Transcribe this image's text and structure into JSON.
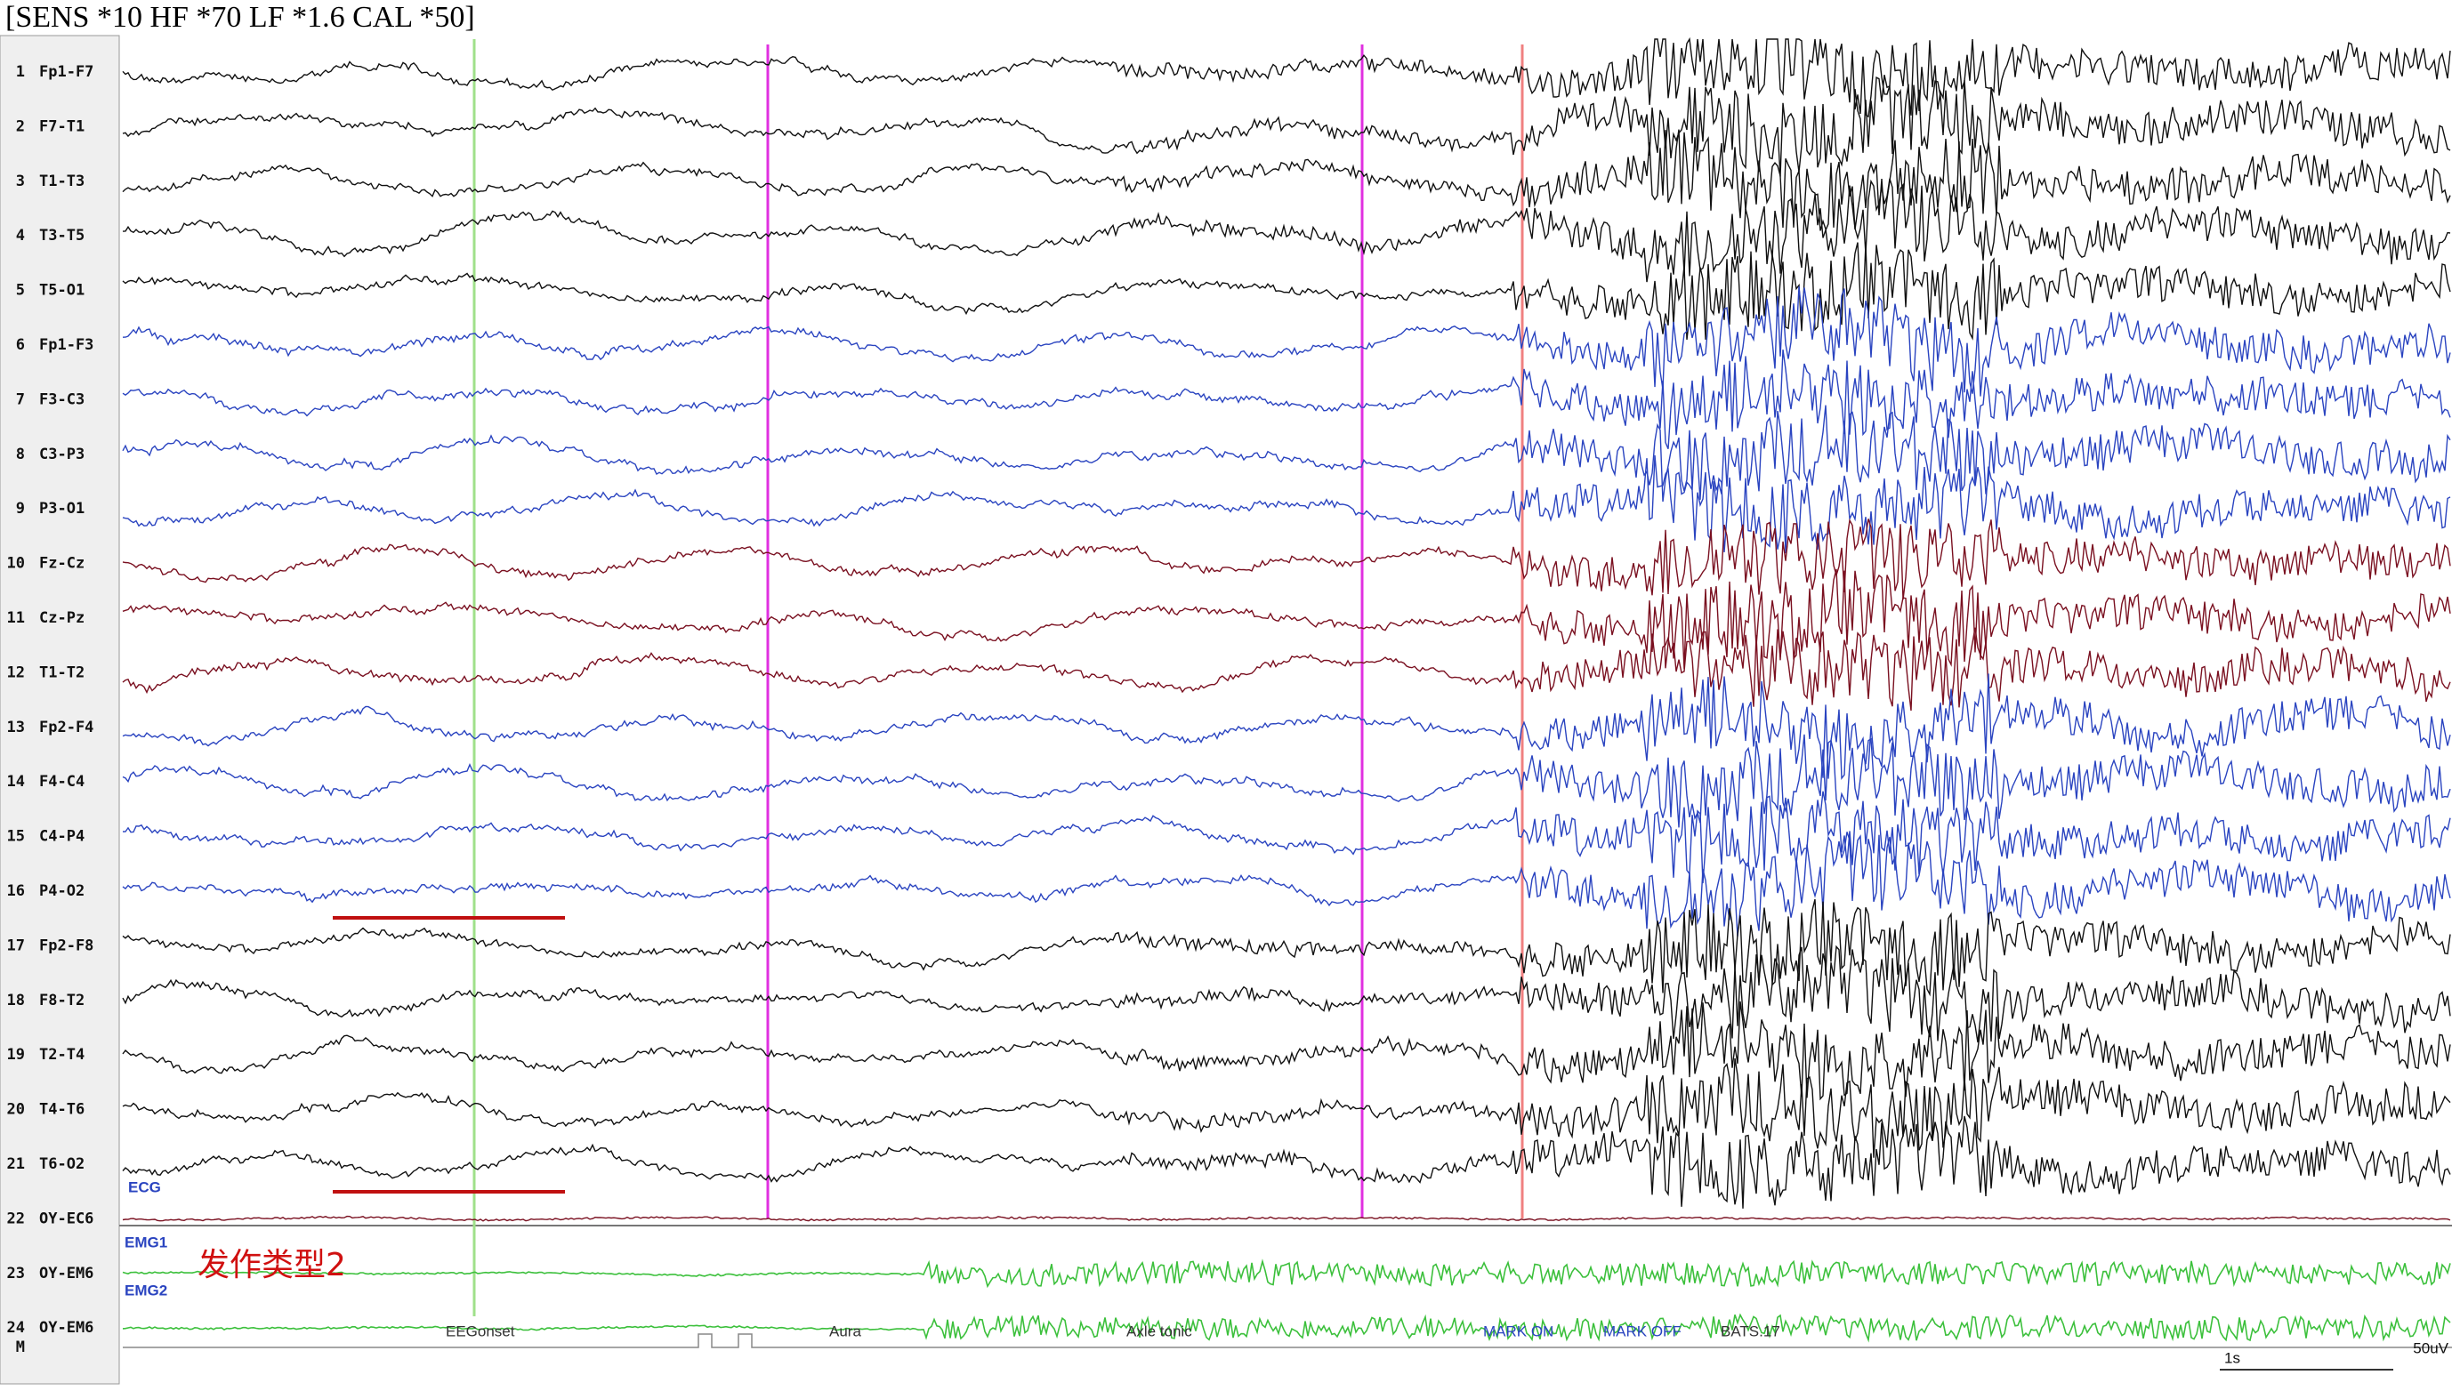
{
  "header": {
    "settings": "[SENS *10  HF *70  LF *1.6  CAL *50]"
  },
  "channels": [
    {
      "num": "1",
      "name": "Fp1-F7"
    },
    {
      "num": "2",
      "name": "F7-T1"
    },
    {
      "num": "3",
      "name": "T1-T3"
    },
    {
      "num": "4",
      "name": "T3-T5"
    },
    {
      "num": "5",
      "name": "T5-O1"
    },
    {
      "num": "6",
      "name": "Fp1-F3"
    },
    {
      "num": "7",
      "name": "F3-C3"
    },
    {
      "num": "8",
      "name": "C3-P3"
    },
    {
      "num": "9",
      "name": "P3-O1"
    },
    {
      "num": "10",
      "name": "Fz-Cz"
    },
    {
      "num": "11",
      "name": "Cz-Pz"
    },
    {
      "num": "12",
      "name": "T1-T2"
    },
    {
      "num": "13",
      "name": "Fp2-F4"
    },
    {
      "num": "14",
      "name": "F4-C4"
    },
    {
      "num": "15",
      "name": "C4-P4"
    },
    {
      "num": "16",
      "name": "P4-O2"
    },
    {
      "num": "17",
      "name": "Fp2-F8"
    },
    {
      "num": "18",
      "name": "F8-T2"
    },
    {
      "num": "19",
      "name": "T2-T4"
    },
    {
      "num": "20",
      "name": "T4-T6"
    },
    {
      "num": "21",
      "name": "T6-O2"
    },
    {
      "num": "22",
      "name": "OY-EC6"
    },
    {
      "num": "23",
      "name": "OY-EM6"
    },
    {
      "num": "24",
      "name": "OY-EM6"
    }
  ],
  "marker_row_label": "M",
  "trace_labels": [
    "ECG",
    "EMG1",
    "EMG2"
  ],
  "seizure_label": "发作类型2",
  "annotations": [
    "EEGonset",
    "Aura",
    "Axle tonic",
    "MARK ON",
    "MARK OFF",
    "BATS.17"
  ],
  "time_scale": "1s",
  "amplitude_scale": "50uV"
}
